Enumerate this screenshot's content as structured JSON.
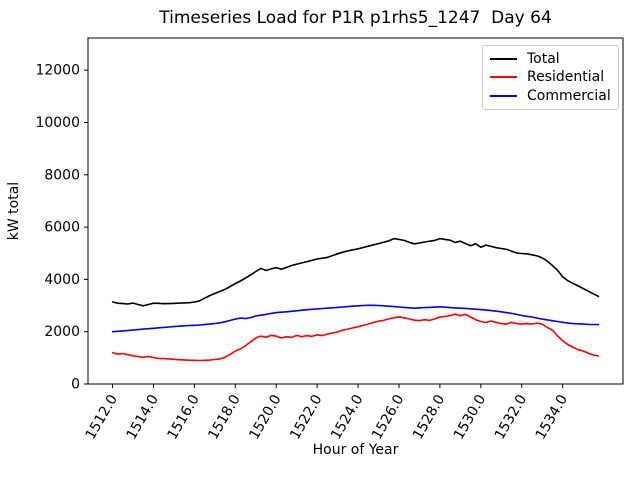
{
  "figure": {
    "kind": "matplotlib-line-chart"
  },
  "chart_data": {
    "type": "line",
    "title": "Timeseries Load for P1R p1rhs5_1247  Day 64",
    "xlabel": "Hour of Year",
    "ylabel": "kW total",
    "xlim": [
      1510.8,
      1536.95
    ],
    "ylim": [
      0,
      13230
    ],
    "grid": false,
    "x_ticks": [
      1512,
      1514,
      1516,
      1518,
      1520,
      1522,
      1524,
      1526,
      1528,
      1530,
      1532,
      1534
    ],
    "x_tick_labels": [
      "1512.0",
      "1514.0",
      "1516.0",
      "1518.0",
      "1520.0",
      "1522.0",
      "1524.0",
      "1526.0",
      "1528.0",
      "1530.0",
      "1532.0",
      "1534.0"
    ],
    "x_tick_rotation_deg": 60,
    "y_ticks": [
      0,
      2000,
      4000,
      6000,
      8000,
      10000,
      12000
    ],
    "y_tick_labels": [
      "0",
      "2000",
      "4000",
      "6000",
      "8000",
      "10000",
      "12000"
    ],
    "legend": {
      "position": "upper right",
      "entries": [
        "Total",
        "Residential",
        "Commercial"
      ]
    },
    "x_start": 1512.0,
    "x_step": 0.25,
    "n_points": 96,
    "series": [
      {
        "name": "Total",
        "color": "#000000",
        "values": [
          3140,
          3090,
          3075,
          3060,
          3095,
          3040,
          2990,
          3040,
          3090,
          3085,
          3070,
          3075,
          3080,
          3095,
          3100,
          3110,
          3130,
          3180,
          3280,
          3380,
          3460,
          3540,
          3620,
          3730,
          3840,
          3940,
          4050,
          4170,
          4300,
          4420,
          4340,
          4400,
          4450,
          4390,
          4460,
          4530,
          4580,
          4630,
          4680,
          4730,
          4780,
          4810,
          4840,
          4910,
          4980,
          5040,
          5090,
          5130,
          5170,
          5220,
          5270,
          5320,
          5370,
          5420,
          5470,
          5560,
          5530,
          5490,
          5420,
          5360,
          5390,
          5430,
          5460,
          5490,
          5560,
          5530,
          5500,
          5410,
          5460,
          5370,
          5290,
          5360,
          5230,
          5310,
          5260,
          5210,
          5180,
          5150,
          5080,
          5010,
          4990,
          4980,
          4940,
          4900,
          4820,
          4700,
          4530,
          4350,
          4100,
          3950,
          3850,
          3750,
          3650,
          3550,
          3450,
          3350
        ]
      },
      {
        "name": "Residential",
        "color": "#ff0000",
        "values": [
          1200,
          1140,
          1165,
          1120,
          1080,
          1050,
          1020,
          1050,
          1015,
          980,
          970,
          960,
          945,
          930,
          920,
          910,
          905,
          900,
          905,
          915,
          935,
          960,
          1020,
          1130,
          1260,
          1340,
          1460,
          1610,
          1760,
          1830,
          1790,
          1860,
          1830,
          1760,
          1810,
          1780,
          1860,
          1810,
          1850,
          1820,
          1880,
          1850,
          1910,
          1950,
          1990,
          2060,
          2100,
          2145,
          2190,
          2240,
          2290,
          2350,
          2400,
          2430,
          2490,
          2530,
          2570,
          2530,
          2490,
          2440,
          2420,
          2460,
          2430,
          2490,
          2560,
          2580,
          2610,
          2670,
          2610,
          2660,
          2560,
          2460,
          2390,
          2350,
          2410,
          2360,
          2310,
          2290,
          2360,
          2310,
          2290,
          2310,
          2290,
          2330,
          2290,
          2160,
          2060,
          1840,
          1660,
          1510,
          1410,
          1310,
          1260,
          1180,
          1110,
          1070
        ]
      },
      {
        "name": "Commercial",
        "color": "#0000ff",
        "values": [
          2000,
          2015,
          2030,
          2045,
          2060,
          2080,
          2100,
          2115,
          2130,
          2150,
          2165,
          2180,
          2195,
          2210,
          2225,
          2235,
          2245,
          2255,
          2270,
          2290,
          2310,
          2340,
          2380,
          2430,
          2480,
          2520,
          2500,
          2540,
          2600,
          2630,
          2660,
          2700,
          2730,
          2745,
          2760,
          2780,
          2800,
          2820,
          2840,
          2855,
          2870,
          2885,
          2900,
          2915,
          2930,
          2945,
          2960,
          2975,
          2990,
          3000,
          3010,
          3010,
          3000,
          2990,
          2975,
          2960,
          2945,
          2930,
          2915,
          2900,
          2910,
          2920,
          2930,
          2940,
          2950,
          2935,
          2920,
          2910,
          2900,
          2890,
          2875,
          2860,
          2845,
          2825,
          2805,
          2785,
          2760,
          2730,
          2700,
          2660,
          2620,
          2590,
          2560,
          2520,
          2480,
          2450,
          2420,
          2390,
          2360,
          2330,
          2310,
          2300,
          2290,
          2280,
          2275,
          2270
        ]
      }
    ]
  }
}
